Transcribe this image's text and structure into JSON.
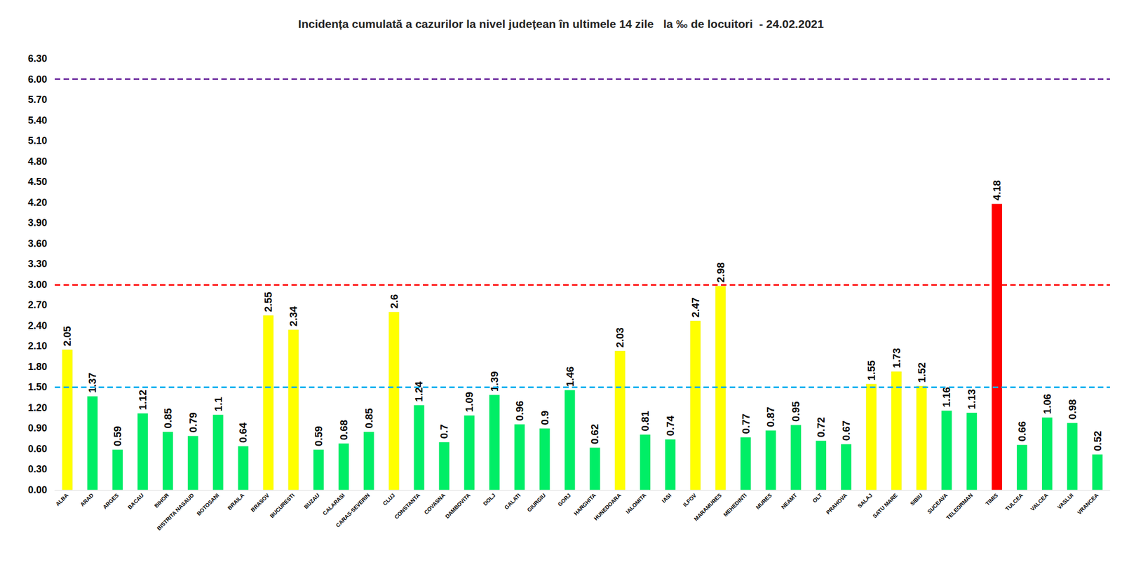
{
  "chart_data": {
    "type": "bar",
    "title": "Incidența cumulată a cazurilor la nivel județean în ultimele 14 zile   la ‰ de locuitori  - 24.02.2021",
    "categories": [
      "ALBA",
      "ARAD",
      "ARGES",
      "BACAU",
      "BIHOR",
      "BISTRITA NASAUD",
      "BOTOSANI",
      "BRAILA",
      "BRASOV",
      "BUCURESTI",
      "BUZAU",
      "CALARASI",
      "CARAS-SEVERIN",
      "CLUJ",
      "CONSTANTA",
      "COVASNA",
      "DAMBOVITA",
      "DOLJ",
      "GALATI",
      "GIURGIU",
      "GORJ",
      "HARGHITA",
      "HUNEDOARA",
      "IALOMITA",
      "IASI",
      "ILFOV",
      "MARAMURES",
      "MEHEDINTI",
      "MURES",
      "NEAMT",
      "OLT",
      "PRAHOVA",
      "SALAJ",
      "SATU MARE",
      "SIBIU",
      "SUCEAVA",
      "TELEORMAN",
      "TIMIS",
      "TULCEA",
      "VALCEA",
      "VASLUI",
      "VRANCEA"
    ],
    "values": [
      2.05,
      1.37,
      0.59,
      1.12,
      0.85,
      0.79,
      1.1,
      0.64,
      2.55,
      2.34,
      0.59,
      0.68,
      0.85,
      2.6,
      1.24,
      0.7,
      1.09,
      1.39,
      0.96,
      0.9,
      1.46,
      0.62,
      2.03,
      0.81,
      0.74,
      2.47,
      2.98,
      0.77,
      0.87,
      0.95,
      0.72,
      0.67,
      1.55,
      1.73,
      1.52,
      1.16,
      1.13,
      4.18,
      0.66,
      1.06,
      0.98,
      0.52
    ],
    "colors": [
      "#ffff00",
      "#00ee66",
      "#00ee66",
      "#00ee66",
      "#00ee66",
      "#00ee66",
      "#00ee66",
      "#00ee66",
      "#ffff00",
      "#ffff00",
      "#00ee66",
      "#00ee66",
      "#00ee66",
      "#ffff00",
      "#00ee66",
      "#00ee66",
      "#00ee66",
      "#00ee66",
      "#00ee66",
      "#00ee66",
      "#00ee66",
      "#00ee66",
      "#ffff00",
      "#00ee66",
      "#00ee66",
      "#ffff00",
      "#ffff00",
      "#00ee66",
      "#00ee66",
      "#00ee66",
      "#00ee66",
      "#00ee66",
      "#ffff00",
      "#ffff00",
      "#ffff00",
      "#00ee66",
      "#00ee66",
      "#ff0000",
      "#00ee66",
      "#00ee66",
      "#00ee66",
      "#00ee66"
    ],
    "ylim": [
      0,
      6.3
    ],
    "yticks": [
      {
        "value": 0,
        "label": "0.00"
      },
      {
        "value": 0.3,
        "label": "0.30"
      },
      {
        "value": 0.6,
        "label": "0.60"
      },
      {
        "value": 0.9,
        "label": "0.90"
      },
      {
        "value": 1.2,
        "label": "1.20"
      },
      {
        "value": 1.5,
        "label": "1.50"
      },
      {
        "value": 1.8,
        "label": "1.80"
      },
      {
        "value": 2.1,
        "label": "2.10"
      },
      {
        "value": 2.4,
        "label": "2.40"
      },
      {
        "value": 2.7,
        "label": "2.70"
      },
      {
        "value": 3,
        "label": "3.00"
      },
      {
        "value": 3.3,
        "label": "3.30"
      },
      {
        "value": 3.6,
        "label": "3.60"
      },
      {
        "value": 3.9,
        "label": "3.90"
      },
      {
        "value": 4.2,
        "label": "4.20"
      },
      {
        "value": 4.5,
        "label": "4.50"
      },
      {
        "value": 4.8,
        "label": "4.80"
      },
      {
        "value": 5.1,
        "label": "5.10"
      },
      {
        "value": 5.4,
        "label": "5.40"
      },
      {
        "value": 5.7,
        "label": "5.70"
      },
      {
        "value": 6,
        "label": "6.00"
      },
      {
        "value": 6.3,
        "label": "6.30"
      }
    ],
    "reference_lines": [
      {
        "value": 6,
        "color": "#7030a0",
        "line_style": "dashed"
      },
      {
        "value": 3,
        "color": "#ff0000",
        "line_style": "dashed"
      },
      {
        "value": 1.5,
        "color": "#00b0f0",
        "line_style": "dashed"
      }
    ],
    "grid": false,
    "data_labels": true
  }
}
